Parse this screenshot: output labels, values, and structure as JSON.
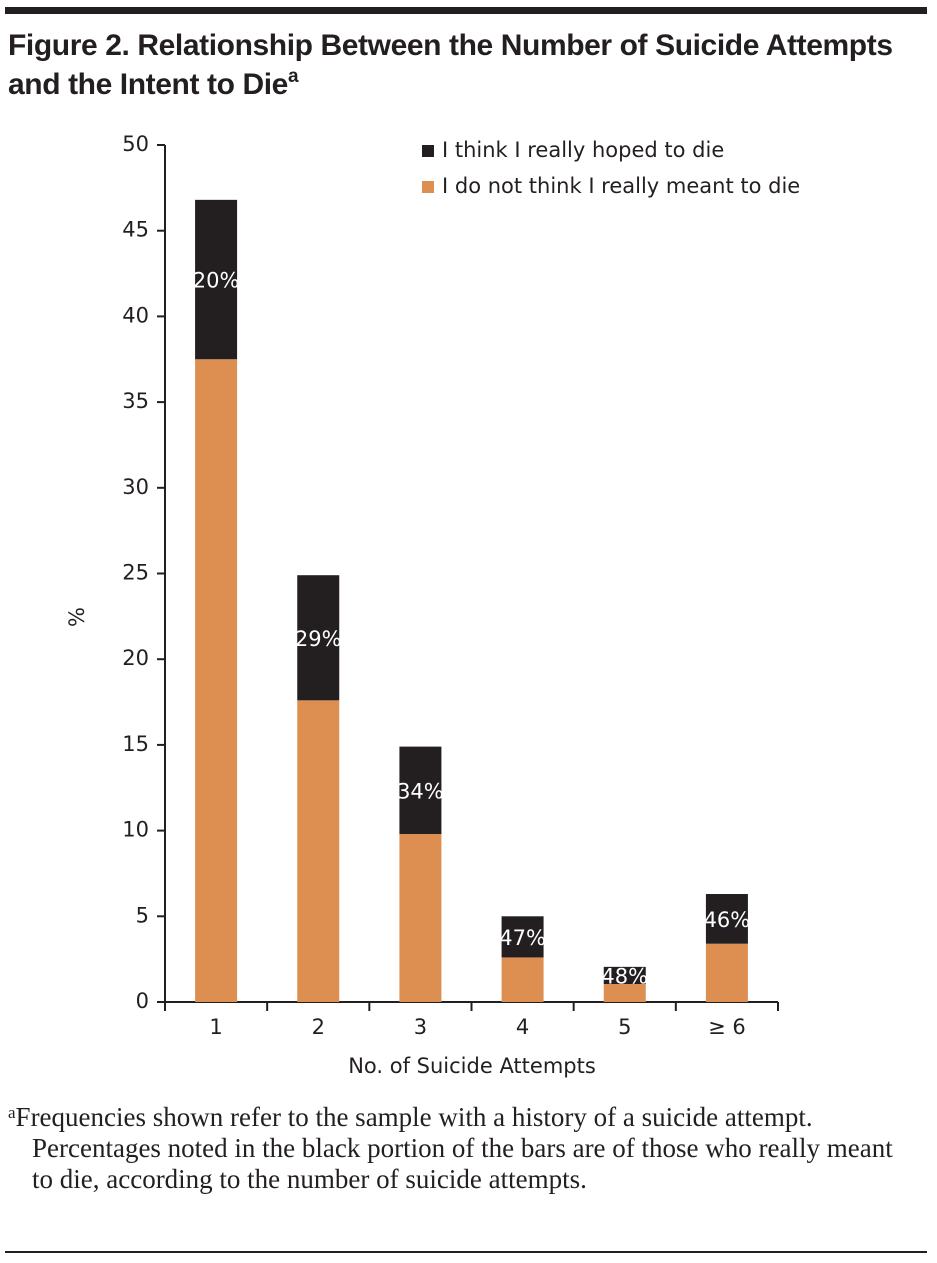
{
  "chart_data": {
    "type": "stacked_bar",
    "title": "Figure 2. Relationship Between the Number of Suicide Attempts and the Intent to Die",
    "title_note_marker": "a",
    "x_label": "No. of Suicide Attempts",
    "y_label": "%",
    "categories": [
      "1",
      "2",
      "3",
      "4",
      "5",
      "≥ 6"
    ],
    "series": [
      {
        "name": "I do not think I really meant to die",
        "color": "#dd8f52",
        "values": [
          37.5,
          17.6,
          9.8,
          2.6,
          1.05,
          3.4
        ]
      },
      {
        "name": "I think I really hoped to die",
        "color": "#231f20",
        "values": [
          9.3,
          7.3,
          5.1,
          2.4,
          1.0,
          2.9
        ]
      }
    ],
    "segment_labels": [
      "20%",
      "29%",
      "34%",
      "47%",
      "48%",
      "46%"
    ],
    "ylim": [
      0,
      50
    ],
    "yticks": [
      0,
      5,
      10,
      15,
      20,
      25,
      30,
      35,
      40,
      45,
      50
    ],
    "grid": false,
    "legend": "top-right",
    "footnote_marker": "a",
    "footnote": "Frequencies shown refer to the sample with a history of a suicide attempt. Percentages noted in the black portion of the bars are of those who really meant to die, according to the number of suicide attempts."
  }
}
